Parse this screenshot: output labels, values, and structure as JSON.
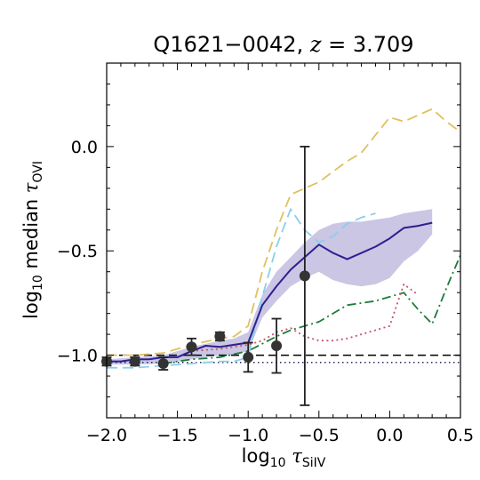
{
  "chart_data": {
    "type": "line",
    "title": {
      "main": "Q1621−0042, ",
      "z_symbol": "z",
      "z_value": " = 3.709"
    },
    "xlabel": {
      "prefix": "log",
      "subscript": "10",
      "symbol": "τ",
      "symbol_subscript": "SiIV"
    },
    "ylabel": {
      "prefix": "log",
      "subscript": "10",
      "middle": " median ",
      "symbol": "τ",
      "symbol_subscript": "OVI"
    },
    "xlim": [
      -2.0,
      0.5
    ],
    "ylim": [
      -1.3,
      0.4
    ],
    "x_ticks": [
      {
        "value": -2.0,
        "label": "−2.0"
      },
      {
        "value": -1.5,
        "label": "−1.5"
      },
      {
        "value": -1.0,
        "label": "−1.0"
      },
      {
        "value": -0.5,
        "label": "−0.5"
      },
      {
        "value": 0.0,
        "label": "0.0"
      },
      {
        "value": 0.5,
        "label": "0.5"
      }
    ],
    "y_ticks": [
      {
        "value": 0.0,
        "label": "0.0"
      },
      {
        "value": -0.5,
        "label": "−0.5"
      },
      {
        "value": -1.0,
        "label": "−1.0"
      }
    ],
    "observed_points": [
      {
        "x": -2.0,
        "y": -1.03,
        "yerr": 0.02
      },
      {
        "x": -1.8,
        "y": -1.03,
        "yerr": 0.02
      },
      {
        "x": -1.6,
        "y": -1.04,
        "yerr": 0.03
      },
      {
        "x": -1.4,
        "y": -0.96,
        "yerr": 0.04
      },
      {
        "x": -1.2,
        "y": -0.91,
        "yerr": 0.02
      },
      {
        "x": -1.0,
        "y": -1.01,
        "yerr": 0.07
      },
      {
        "x": -0.8,
        "y": -0.955,
        "yerr": 0.13
      },
      {
        "x": -0.6,
        "y": -0.62,
        "yerr": 0.62
      }
    ],
    "model_median": {
      "color": "#2d1f8f",
      "x": [
        -2.0,
        -1.9,
        -1.8,
        -1.7,
        -1.6,
        -1.5,
        -1.4,
        -1.3,
        -1.2,
        -1.1,
        -1.0,
        -0.9,
        -0.8,
        -0.7,
        -0.6,
        -0.5,
        -0.4,
        -0.3,
        -0.2,
        -0.1,
        0.0,
        0.1,
        0.2,
        0.3
      ],
      "y": [
        -1.03,
        -1.03,
        -1.02,
        -1.02,
        -1.01,
        -1.01,
        -0.98,
        -0.955,
        -0.96,
        -0.95,
        -0.94,
        -0.76,
        -0.67,
        -0.59,
        -0.53,
        -0.47,
        -0.51,
        -0.54,
        -0.51,
        -0.48,
        -0.44,
        -0.39,
        -0.38,
        -0.365
      ]
    },
    "model_band": {
      "color": "#b8b3db",
      "x": [
        -2.0,
        -1.8,
        -1.6,
        -1.4,
        -1.2,
        -1.1,
        -1.0,
        -0.9,
        -0.8,
        -0.7,
        -0.6,
        -0.5,
        -0.4,
        -0.3,
        -0.2,
        -0.1,
        0.0,
        0.1,
        0.2,
        0.3
      ],
      "upper": [
        -1.02,
        -1.01,
        -1.0,
        -0.96,
        -0.93,
        -0.92,
        -0.89,
        -0.71,
        -0.6,
        -0.53,
        -0.46,
        -0.4,
        -0.37,
        -0.36,
        -0.36,
        -0.35,
        -0.34,
        -0.32,
        -0.31,
        -0.3
      ],
      "lower": [
        -1.045,
        -1.045,
        -1.04,
        -1.02,
        -1.0,
        -1.0,
        -0.98,
        -0.82,
        -0.74,
        -0.67,
        -0.63,
        -0.6,
        -0.64,
        -0.66,
        -0.67,
        -0.66,
        -0.63,
        -0.55,
        -0.5,
        -0.42
      ]
    },
    "dashed_yellow": {
      "color": "#e0c060",
      "x": [
        -2.0,
        -1.8,
        -1.6,
        -1.4,
        -1.2,
        -1.1,
        -1.0,
        -0.9,
        -0.8,
        -0.7,
        -0.6,
        -0.5,
        -0.4,
        -0.3,
        -0.2,
        0.0,
        0.1,
        0.2,
        0.3,
        0.4,
        0.5
      ],
      "y": [
        -1.0,
        -1.0,
        -0.99,
        -0.95,
        -0.92,
        -0.91,
        -0.86,
        -0.6,
        -0.4,
        -0.23,
        -0.2,
        -0.17,
        -0.12,
        -0.07,
        -0.03,
        0.14,
        0.12,
        0.15,
        0.18,
        0.12,
        0.07
      ]
    },
    "dashed_cyan": {
      "color": "#8acfea",
      "x": [
        -2.0,
        -1.8,
        -1.6,
        -1.4,
        -1.2,
        -1.1,
        -1.0,
        -0.9,
        -0.8,
        -0.7,
        -0.6,
        -0.5,
        -0.4,
        -0.3,
        -0.2,
        -0.1
      ],
      "y": [
        -1.06,
        -1.06,
        -1.05,
        -1.04,
        -1.03,
        -1.03,
        -1.01,
        -0.72,
        -0.48,
        -0.3,
        -0.4,
        -0.46,
        -0.43,
        -0.37,
        -0.34,
        -0.32
      ]
    },
    "dashdot_green": {
      "color": "#1e7b3a",
      "x": [
        -1.6,
        -1.4,
        -1.2,
        -1.0,
        -0.8,
        -0.7,
        -0.6,
        -0.5,
        -0.4,
        -0.3,
        -0.2,
        -0.1,
        0.0,
        0.1,
        0.2,
        0.3,
        0.4,
        0.5
      ],
      "y": [
        -1.04,
        -1.02,
        -1.01,
        -0.98,
        -0.91,
        -0.88,
        -0.86,
        -0.84,
        -0.8,
        -0.76,
        -0.75,
        -0.74,
        -0.72,
        -0.7,
        -0.78,
        -0.85,
        -0.68,
        -0.52
      ]
    },
    "dotted_pink": {
      "color": "#c4546a",
      "x": [
        -1.4,
        -1.2,
        -1.0,
        -0.9,
        -0.8,
        -0.7,
        -0.6,
        -0.5,
        -0.4,
        -0.3,
        -0.2,
        -0.1,
        0.0,
        0.1,
        0.2
      ],
      "y": [
        -0.98,
        -0.97,
        -0.95,
        -0.93,
        -0.89,
        -0.87,
        -0.91,
        -0.93,
        -0.93,
        -0.92,
        -0.9,
        -0.88,
        -0.86,
        -0.66,
        -0.71
      ]
    },
    "reference_dashed_y": -1.0,
    "reference_dotted_y": -1.035,
    "reference_dotted_color": "#2a2a5a",
    "observed_color": "#333333",
    "grid": false
  }
}
